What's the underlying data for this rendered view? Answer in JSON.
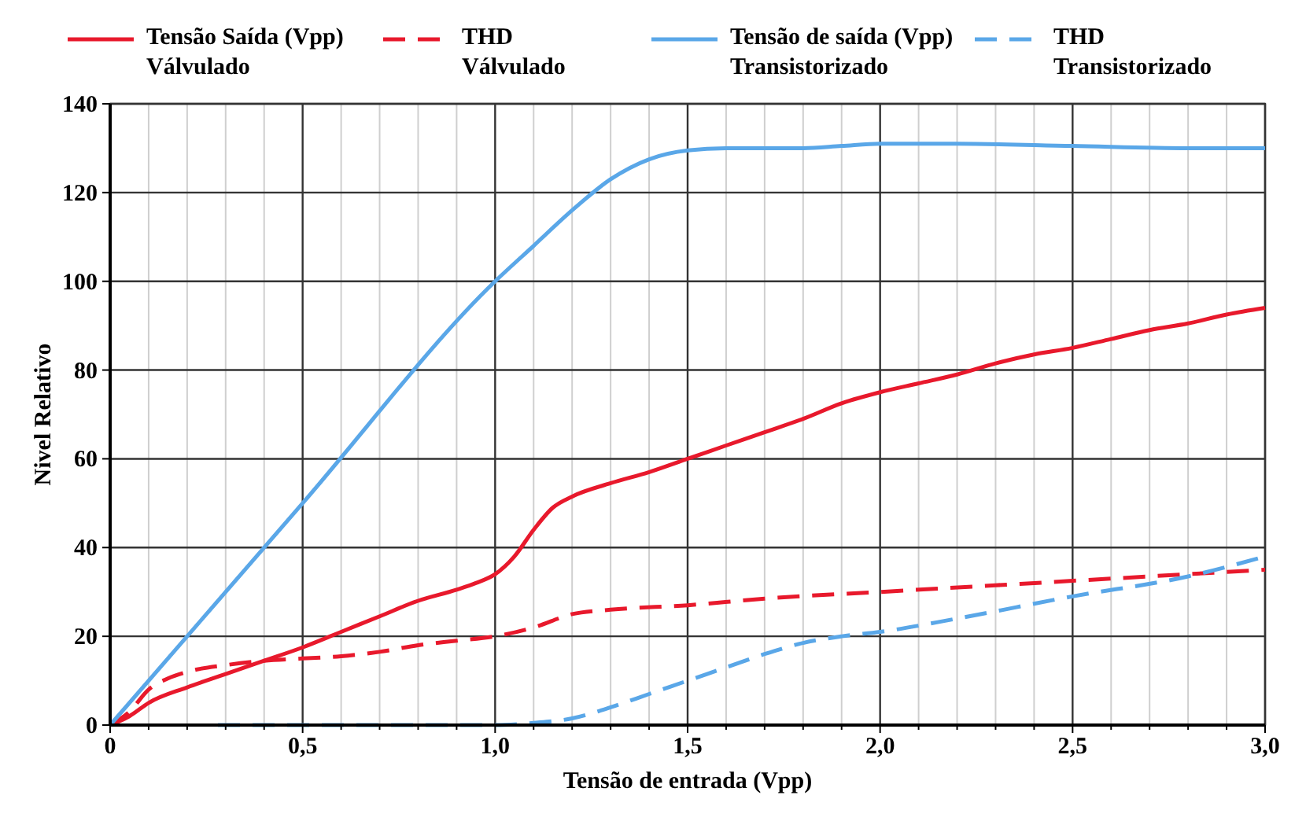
{
  "chart_data": {
    "type": "line",
    "xlabel": "Tensão de entrada (Vpp)",
    "ylabel": "Nivel Relativo",
    "xlim": [
      0,
      3
    ],
    "ylim": [
      0,
      140
    ],
    "xticks": [
      0,
      {
        "value": 0.1,
        "label": null
      },
      {
        "value": 0.2,
        "label": null
      },
      {
        "value": 0.3,
        "label": null
      },
      {
        "value": 0.4,
        "label": null
      },
      {
        "value": 0.5,
        "label": "0,5"
      },
      {
        "value": 0.6,
        "label": null
      },
      {
        "value": 0.7,
        "label": null
      },
      {
        "value": 0.8,
        "label": null
      },
      {
        "value": 0.9,
        "label": null
      },
      {
        "value": 1,
        "label": "1,0"
      },
      {
        "value": 1.1,
        "label": null
      },
      {
        "value": 1.2,
        "label": null
      },
      {
        "value": 1.3,
        "label": null
      },
      {
        "value": 1.4,
        "label": null
      },
      {
        "value": 1.5,
        "label": "1,5"
      },
      {
        "value": 1.6,
        "label": null
      },
      {
        "value": 1.7,
        "label": null
      },
      {
        "value": 1.8,
        "label": null
      },
      {
        "value": 1.9,
        "label": null
      },
      {
        "value": 2,
        "label": "2,0"
      },
      {
        "value": 2.1,
        "label": null
      },
      {
        "value": 2.2,
        "label": null
      },
      {
        "value": 2.3,
        "label": null
      },
      {
        "value": 2.4,
        "label": null
      },
      {
        "value": 2.5,
        "label": "2,5"
      },
      {
        "value": 2.6,
        "label": null
      },
      {
        "value": 2.7,
        "label": null
      },
      {
        "value": 2.8,
        "label": null
      },
      {
        "value": 2.9,
        "label": null
      },
      {
        "value": 3,
        "label": "3,0"
      }
    ],
    "yticks": [
      0,
      20,
      40,
      60,
      80,
      100,
      120,
      140
    ],
    "grid": true,
    "legend": "top",
    "marker": "none",
    "series": [
      {
        "name": "Tensão Saída (Vpp)\nVálvulado",
        "color": "#e8192c",
        "line_style": "solid",
        "x": [
          0,
          0.05,
          0.1,
          0.2,
          0.3,
          0.4,
          0.5,
          0.6,
          0.7,
          0.8,
          0.9,
          0.95,
          1.0,
          1.05,
          1.1,
          1.15,
          1.2,
          1.3,
          1.4,
          1.5,
          1.6,
          1.7,
          1.8,
          1.9,
          2.0,
          2.1,
          2.2,
          2.3,
          2.4,
          2.5,
          2.6,
          2.7,
          2.8,
          2.9,
          3.0
        ],
        "values": [
          0,
          2,
          5,
          8.5,
          11.5,
          14.5,
          17.5,
          21,
          24.5,
          28,
          30.5,
          32,
          34,
          38,
          44,
          49,
          51.5,
          54.5,
          57,
          60,
          63,
          66,
          69,
          72.5,
          75,
          77,
          79,
          81.5,
          83.5,
          85,
          87,
          89,
          90.5,
          92.5,
          94
        ]
      },
      {
        "name": "THD\nVálvulado",
        "color": "#e8192c",
        "line_style": "dashed",
        "x": [
          0,
          0.05,
          0.1,
          0.15,
          0.2,
          0.3,
          0.4,
          0.5,
          0.6,
          0.7,
          0.8,
          0.9,
          1.0,
          1.1,
          1.2,
          1.3,
          1.5,
          1.7,
          2.0,
          2.3,
          2.5,
          2.8,
          3.0
        ],
        "values": [
          0,
          3,
          8,
          10.5,
          12,
          13.5,
          14.5,
          15,
          15.5,
          16.5,
          18,
          19,
          20,
          22,
          25,
          26,
          27,
          28.5,
          30,
          31.5,
          32.5,
          34,
          35
        ]
      },
      {
        "name": "Tensão de saída (Vpp)\nTransistorizado",
        "color": "#5aa7e8",
        "line_style": "solid",
        "x": [
          0,
          0.5,
          1.0,
          1.1,
          1.2,
          1.3,
          1.4,
          1.5,
          1.6,
          1.8,
          1.9,
          2.0,
          2.2,
          2.5,
          2.8,
          3.0
        ],
        "values": [
          0,
          50,
          100,
          108,
          116,
          123,
          127.5,
          129.5,
          130,
          130,
          130.5,
          131,
          131,
          130.5,
          130,
          130
        ]
      },
      {
        "name": "THD\nTransistorizado",
        "color": "#5aa7e8",
        "line_style": "dashed",
        "x": [
          0.28,
          1.0,
          1.1,
          1.2,
          1.3,
          1.4,
          1.5,
          1.6,
          1.7,
          1.8,
          1.9,
          2.0,
          2.2,
          2.5,
          2.8,
          3.0
        ],
        "values": [
          0,
          0,
          0.5,
          1.5,
          4,
          7,
          10,
          13,
          16,
          18.5,
          20,
          21,
          24,
          29,
          33.5,
          38
        ]
      }
    ]
  }
}
